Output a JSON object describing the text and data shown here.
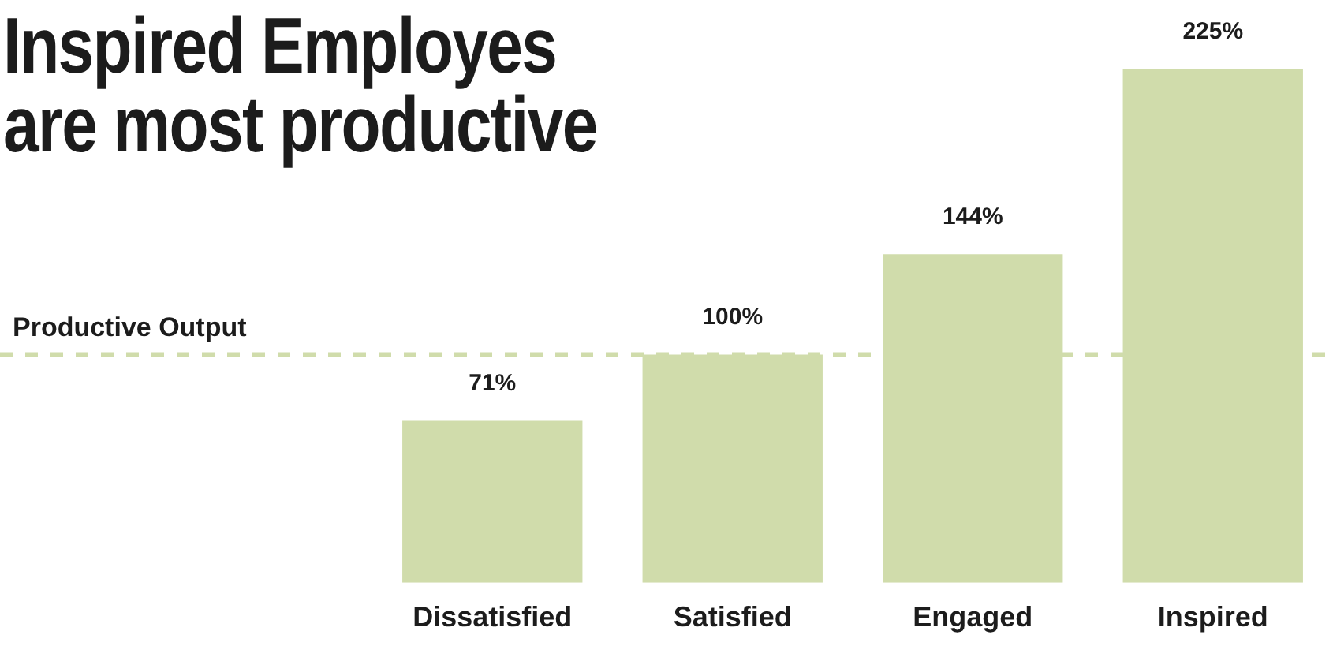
{
  "chart_data": {
    "type": "bar",
    "title": "Inspired Employes\nare most productive",
    "categories": [
      "Dissatisfied",
      "Satisfied",
      "Engaged",
      "Inspired"
    ],
    "values": [
      71,
      100,
      144,
      225
    ],
    "value_labels": [
      "71%",
      "100%",
      "144%",
      "225%"
    ],
    "color": "#d0dcab",
    "ref_lines": [
      {
        "axis": "y",
        "value": 100,
        "label": "Productive Output",
        "color": "#d0dcab",
        "line_style": "dashed"
      }
    ],
    "grid": false,
    "legend": false
  }
}
